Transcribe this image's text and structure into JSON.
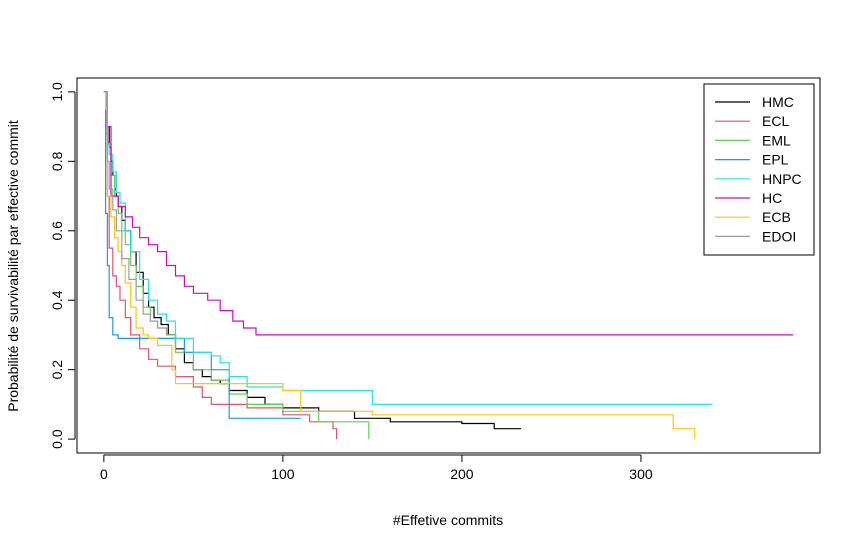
{
  "chart_data": {
    "type": "line",
    "step": true,
    "title": "",
    "xlabel": "#Effetive commits",
    "ylabel": "Probabilité de survivabilité par effective commit",
    "xlim": [
      -15,
      400
    ],
    "ylim": [
      -0.04,
      1.04
    ],
    "x_ticks": [
      0,
      100,
      200,
      300
    ],
    "y_ticks": [
      0.0,
      0.2,
      0.4,
      0.6,
      0.8,
      1.0
    ],
    "x_tick_labels": [
      "0",
      "100",
      "200",
      "300"
    ],
    "y_tick_labels": [
      "0.0",
      "0.2",
      "0.4",
      "0.6",
      "0.8",
      "1.0"
    ],
    "grid": false,
    "legend_position": "top-right",
    "series": [
      {
        "name": "HMC",
        "color": "#000000",
        "x": [
          0,
          2,
          3,
          4,
          5,
          6,
          7,
          8,
          10,
          12,
          15,
          18,
          22,
          25,
          28,
          32,
          36,
          40,
          45,
          50,
          55,
          60,
          65,
          70,
          80,
          90,
          100,
          120,
          140,
          160,
          200,
          218,
          233
        ],
        "y": [
          1.0,
          0.9,
          0.84,
          0.8,
          0.76,
          0.72,
          0.7,
          0.67,
          0.63,
          0.6,
          0.54,
          0.48,
          0.42,
          0.38,
          0.35,
          0.33,
          0.3,
          0.26,
          0.22,
          0.2,
          0.18,
          0.17,
          0.16,
          0.14,
          0.12,
          0.1,
          0.09,
          0.08,
          0.06,
          0.05,
          0.045,
          0.03,
          0.03
        ]
      },
      {
        "name": "ECL",
        "color": "#DF536B",
        "x": [
          0,
          1,
          2,
          3,
          5,
          7,
          9,
          12,
          15,
          20,
          25,
          30,
          40,
          50,
          55,
          60,
          70,
          80,
          100,
          115,
          128,
          130
        ],
        "y": [
          1.0,
          0.88,
          0.7,
          0.55,
          0.47,
          0.44,
          0.4,
          0.35,
          0.3,
          0.26,
          0.23,
          0.21,
          0.18,
          0.15,
          0.12,
          0.1,
          0.1,
          0.09,
          0.07,
          0.05,
          0.03,
          0.0
        ]
      },
      {
        "name": "EML",
        "color": "#61D04F",
        "x": [
          0,
          2,
          4,
          6,
          8,
          10,
          12,
          15,
          18,
          22,
          26,
          30,
          35,
          40,
          50,
          60,
          70,
          80,
          100,
          120,
          148
        ],
        "y": [
          1.0,
          0.85,
          0.76,
          0.7,
          0.65,
          0.6,
          0.56,
          0.5,
          0.44,
          0.38,
          0.34,
          0.32,
          0.3,
          0.25,
          0.2,
          0.17,
          0.13,
          0.1,
          0.08,
          0.05,
          0.0
        ]
      },
      {
        "name": "EPL",
        "color": "#2297E6",
        "x": [
          0,
          1,
          2,
          3,
          5,
          8,
          12,
          18,
          25,
          35,
          45,
          55,
          60,
          70,
          72,
          90,
          100,
          110
        ],
        "y": [
          1.0,
          0.65,
          0.5,
          0.35,
          0.3,
          0.29,
          0.29,
          0.29,
          0.29,
          0.29,
          0.25,
          0.25,
          0.2,
          0.06,
          0.06,
          0.06,
          0.06,
          0.06
        ]
      },
      {
        "name": "HNPC",
        "color": "#28E2E5",
        "x": [
          0,
          2,
          3,
          5,
          7,
          9,
          12,
          15,
          20,
          25,
          30,
          35,
          40,
          50,
          55,
          60,
          65,
          70,
          80,
          100,
          150,
          200,
          300,
          340
        ],
        "y": [
          1.0,
          0.85,
          0.82,
          0.77,
          0.71,
          0.68,
          0.6,
          0.54,
          0.46,
          0.4,
          0.36,
          0.34,
          0.29,
          0.25,
          0.25,
          0.24,
          0.22,
          0.18,
          0.15,
          0.14,
          0.1,
          0.1,
          0.1,
          0.1
        ]
      },
      {
        "name": "HC",
        "color": "#CD0BBC",
        "x": [
          0,
          2,
          4,
          8,
          12,
          16,
          20,
          25,
          30,
          35,
          40,
          45,
          50,
          58,
          65,
          72,
          78,
          85,
          100,
          200,
          300,
          385
        ],
        "y": [
          1.0,
          0.9,
          0.7,
          0.67,
          0.64,
          0.61,
          0.58,
          0.56,
          0.54,
          0.5,
          0.47,
          0.44,
          0.42,
          0.4,
          0.37,
          0.34,
          0.32,
          0.3,
          0.3,
          0.3,
          0.3,
          0.3
        ]
      },
      {
        "name": "ECB",
        "color": "#F5C710",
        "x": [
          0,
          1,
          2,
          4,
          6,
          8,
          10,
          12,
          15,
          18,
          22,
          25,
          30,
          38,
          40,
          45,
          50,
          70,
          100,
          110,
          150,
          200,
          260,
          310,
          318,
          330
        ],
        "y": [
          1.0,
          0.95,
          0.7,
          0.64,
          0.58,
          0.54,
          0.5,
          0.45,
          0.38,
          0.32,
          0.3,
          0.29,
          0.27,
          0.2,
          0.16,
          0.16,
          0.16,
          0.16,
          0.14,
          0.08,
          0.07,
          0.07,
          0.07,
          0.07,
          0.03,
          0.0
        ]
      },
      {
        "name": "EDOI",
        "color": "#9E9E9E",
        "x": [
          0,
          2,
          3,
          5,
          7,
          10,
          14,
          18,
          22,
          26,
          30,
          35
        ],
        "y": [
          1.0,
          0.8,
          0.72,
          0.66,
          0.6,
          0.52,
          0.46,
          0.4,
          0.36,
          0.34,
          0.32,
          0.3
        ]
      }
    ]
  }
}
